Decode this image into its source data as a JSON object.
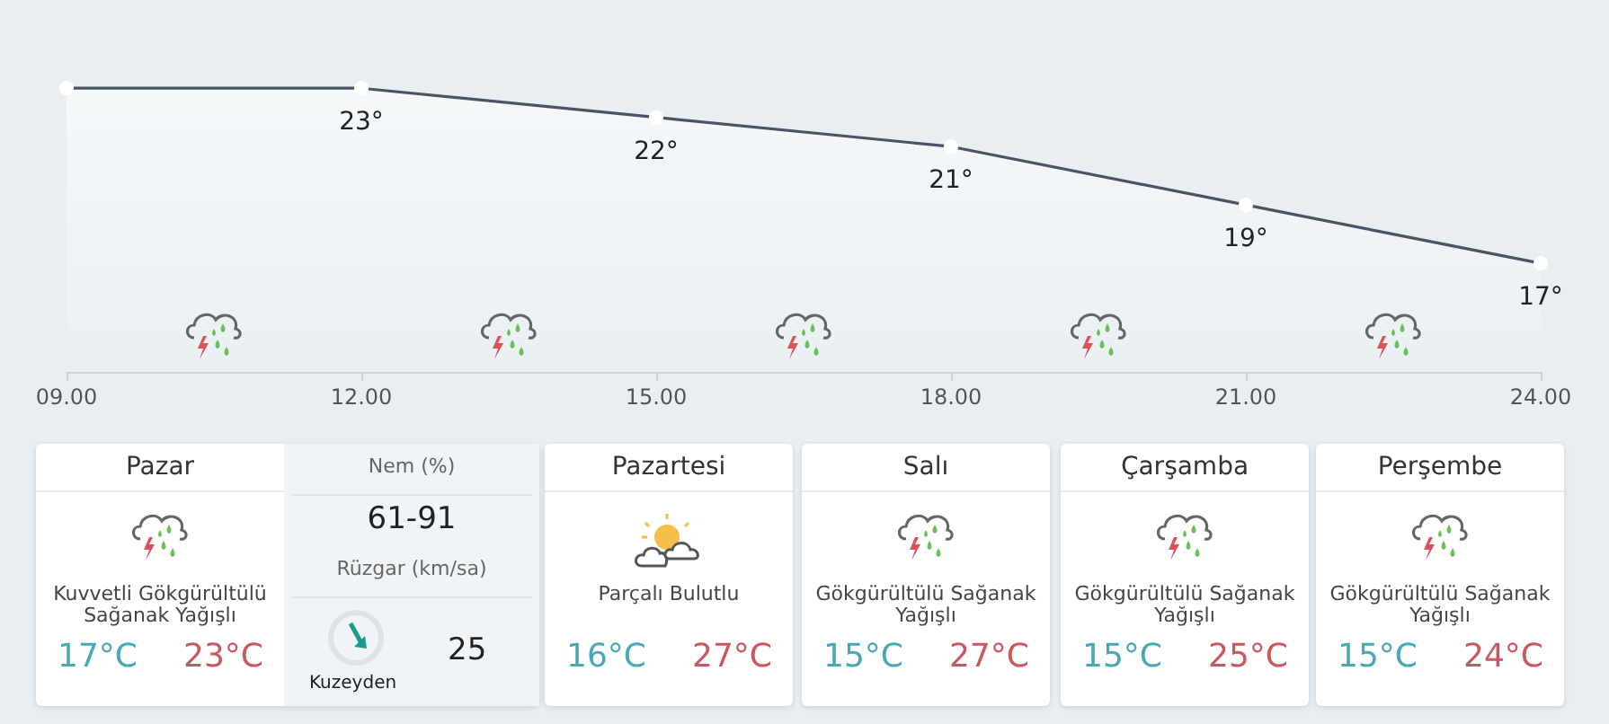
{
  "chart_data": [
    {
      "type": "area",
      "categories": [
        "09.00",
        "12.00",
        "15.00",
        "18.00",
        "21.00",
        "24.00"
      ],
      "series": [
        {
          "color": "#4a5466",
          "values": [
            23,
            23,
            22,
            21,
            19,
            17
          ],
          "value_labels": [
            null,
            "23°",
            "22°",
            "21°",
            "19°",
            "17°"
          ]
        }
      ],
      "tick_labels": "x",
      "marker": "circle",
      "line_style": "solid"
    },
    {
      "type": "other",
      "categories": [
        "Pazar",
        "Pazartesi",
        "Salı",
        "Çarşamba",
        "Perşembe"
      ],
      "annotations": [
        "Kuvvetli Gökgürültülü Sağanak Yağışlı",
        "17°C",
        "23°C",
        "Parçalı Bulutlu",
        "16°C",
        "27°C",
        "Gökgürültülü Sağanak Yağışlı",
        "15°C",
        "27°C",
        "Gökgürültülü Sağanak Yağışlı",
        "15°C",
        "25°C",
        "Gökgürültülü Sağanak Yağışlı",
        "15°C",
        "24°C",
        "Nem (%)",
        "61-91",
        "Rüzgar (km/sa)",
        "25",
        "Kuzeyden"
      ]
    }
  ]
}
